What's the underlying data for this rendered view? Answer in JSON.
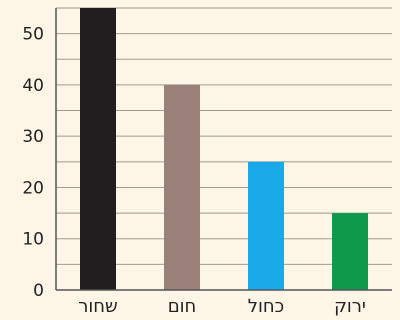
{
  "chart_data": {
    "type": "bar",
    "title": "",
    "xlabel": "",
    "ylabel": "",
    "categories": [
      "שחור",
      "חום",
      "כחול",
      "ירוק"
    ],
    "values": [
      55,
      40,
      25,
      15
    ],
    "bar_colors": [
      "#221e1f",
      "#9b8179",
      "#1aa9e9",
      "#0f9a4b"
    ],
    "ylim": [
      0,
      55
    ],
    "yticks": [
      0,
      10,
      20,
      30,
      40,
      50
    ],
    "grid": true,
    "grid_step": 5,
    "legend": "none"
  },
  "colors": {
    "background": "#fdf6e7",
    "grid": "#a09a90",
    "axis": "#555555",
    "text": "#222222"
  }
}
